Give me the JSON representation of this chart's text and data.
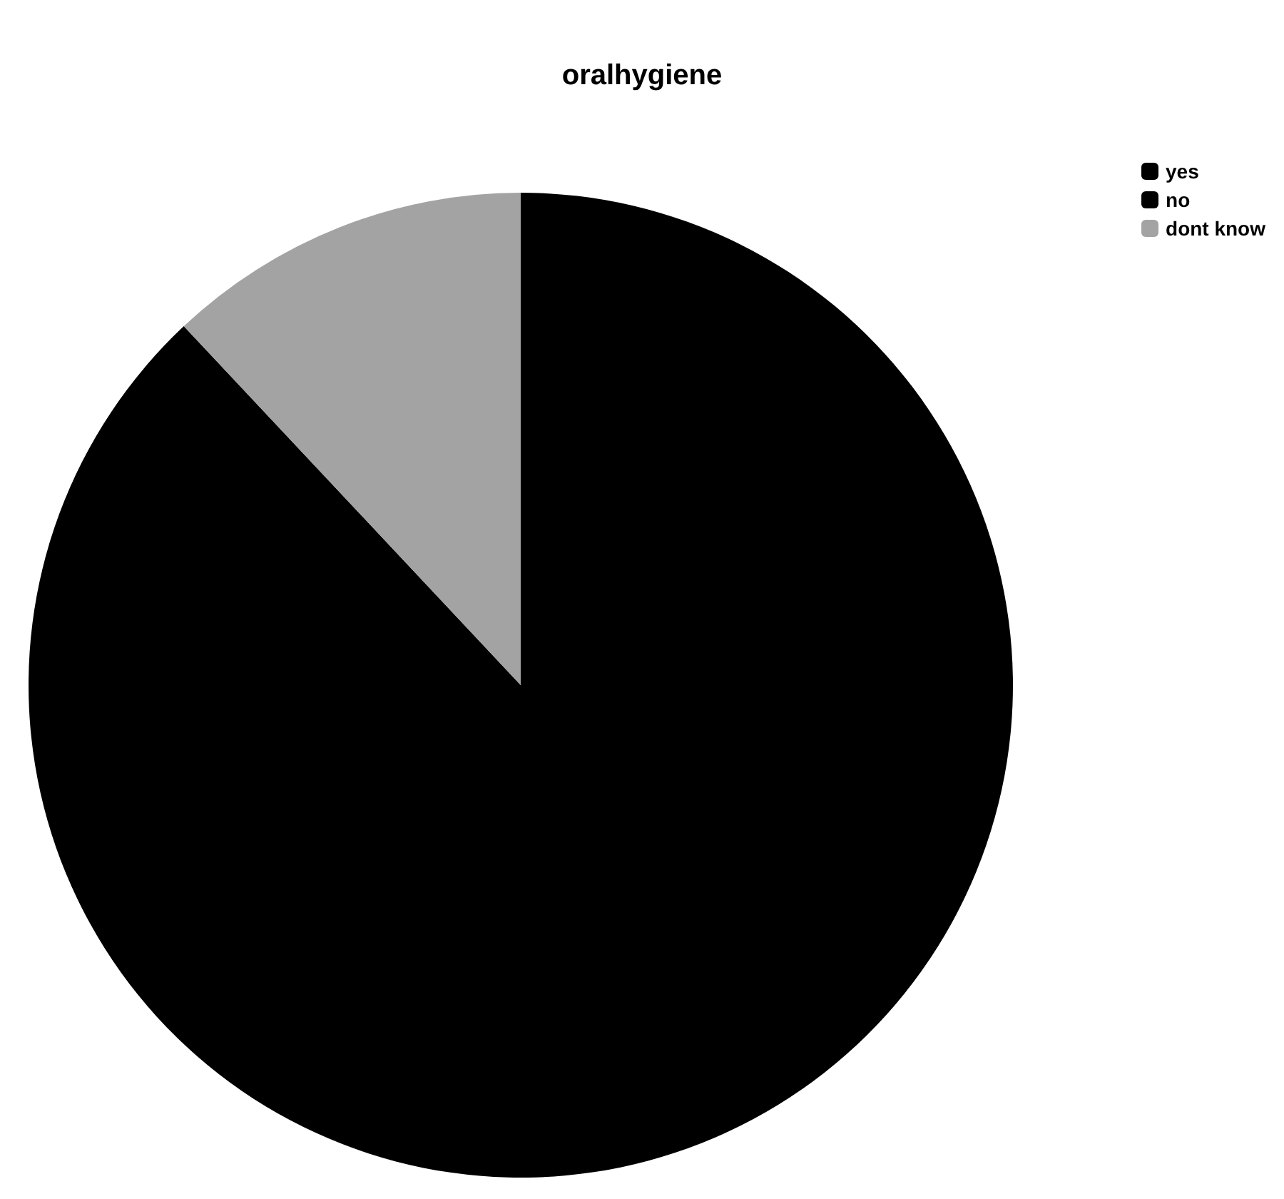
{
  "chart_data": {
    "type": "pie",
    "title": "oralhygiene",
    "categories": [
      "yes",
      "no",
      "dont know"
    ],
    "values": [
      88,
      0,
      12
    ],
    "colors": [
      "#000000",
      "#000000",
      "#a3a3a3"
    ],
    "legend": "top right"
  }
}
